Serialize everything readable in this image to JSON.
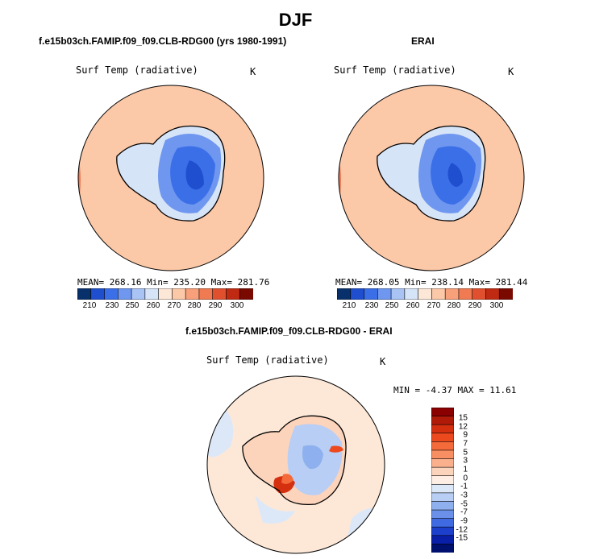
{
  "figure": {
    "title": "DJF",
    "panels": [
      {
        "title": "f.e15b03ch.FAMIP.f09_f09.CLB-RDG00 (yrs 1980-1991)",
        "variable": "Surf Temp (radiative)",
        "units": "K",
        "stats": "MEAN= 268.16   Min= 235.20   Max= 281.76"
      },
      {
        "title": "ERAI",
        "variable": "Surf Temp (radiative)",
        "units": "K",
        "stats": "MEAN= 268.05   Min= 238.14   Max= 281.44"
      },
      {
        "title": "f.e15b03ch.FAMIP.f09_f09.CLB-RDG00 - ERAI",
        "variable": "Surf Temp (radiative)",
        "units": "K",
        "stats": "MIN =   -4.37 MAX =   11.61"
      }
    ]
  },
  "legend_abs": {
    "ticks": [
      "210",
      "230",
      "250",
      "260",
      "270",
      "280",
      "290",
      "300"
    ],
    "colors": [
      "#08306b",
      "#1f4fcf",
      "#3b6fe8",
      "#6f97f0",
      "#a9c3f5",
      "#d6e4f8",
      "#fde8d8",
      "#fbc8a8",
      "#f8a07a",
      "#f07a52",
      "#e0502e",
      "#c02a12",
      "#7a0a00"
    ]
  },
  "legend_diff": {
    "ticks": [
      "15",
      "12",
      "9",
      "7",
      "5",
      "3",
      "1",
      "0",
      "-1",
      "-3",
      "-5",
      "-7",
      "-9",
      "-12",
      "-15"
    ],
    "colors": [
      "#8b0000",
      "#b01a08",
      "#d43010",
      "#ec4a1e",
      "#f56a3a",
      "#f88f62",
      "#fab08c",
      "#fcd4bc",
      "#ffeee4",
      "#dce8f8",
      "#b8cef4",
      "#8eb0ee",
      "#6a90ea",
      "#3f6ae2",
      "#1c40cc",
      "#0a1fa8",
      "#00106e"
    ]
  }
}
